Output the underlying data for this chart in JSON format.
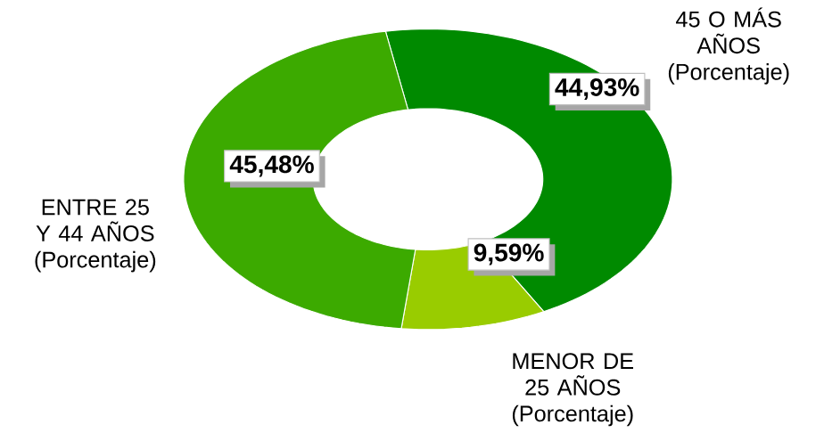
{
  "chart_data": {
    "type": "donut",
    "categories": [
      "45 O MÁS AÑOS (Porcentaje)",
      "MENOR DE 25 AÑOS (Porcentaje)",
      "ENTRE 25 Y 44 AÑOS (Porcentaje)"
    ],
    "values": [
      44.93,
      9.59,
      45.48
    ],
    "colors": [
      "#008a00",
      "#99cc00",
      "#3caa00"
    ],
    "value_labels": [
      "44,93%",
      "9,59%",
      "45,48%"
    ]
  }
}
